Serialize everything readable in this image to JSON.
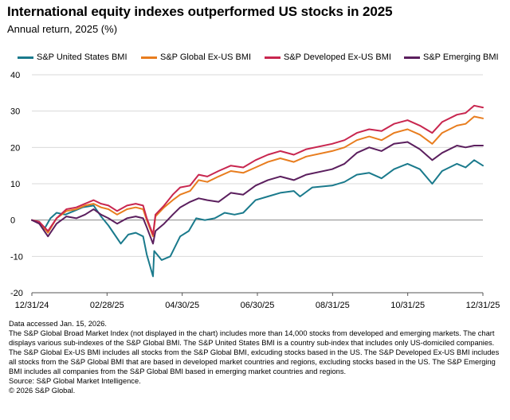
{
  "title": "International equity indexes outperformed US stocks in 2025",
  "subtitle": "Annual return, 2025 (%)",
  "notes": {
    "accessed": "Data accessed Jan. 15, 2026.",
    "description": "The S&P Global Broad Market Index (not displayed in the chart) includes more than 14,000 stocks from developed and emerging markets. The chart displays various sub-indexes of the S&P Global BMI. The S&P United States BMI is a country sub-index that includes only US-domiciled companies. The S&P Global Ex-US BMI includes all stocks from the S&P Global BMI, exlcuding stocks based in the US. The S&P Developed Ex-US BMI includes all stocks from the S&P Global BMI that are based in developed market countries and regions, excluding stocks based in the US. The S&P Emerging BMI includes all companies from the S&P Global BMI based in emerging market countries and regions.",
    "source": "Source: S&P Global Market Intelligence.",
    "copyright": "© 2026 S&P Global."
  },
  "chart_data": {
    "type": "line",
    "xlabel": "",
    "ylabel": "",
    "ylim": [
      -20,
      40
    ],
    "yticks": [
      -20,
      -10,
      0,
      10,
      20,
      30,
      40
    ],
    "xlim": [
      "2024-12-31",
      "2025-12-31"
    ],
    "xticks": [
      "12/31/24",
      "02/28/25",
      "04/30/25",
      "06/30/25",
      "08/31/25",
      "10/31/25",
      "12/31/25"
    ],
    "grid": "horizontal",
    "legend": "top",
    "series": [
      {
        "name": "S&P United States BMI",
        "color": "#1a7a8c",
        "points": [
          [
            "2024-12-31",
            0
          ],
          [
            "2025-01-06",
            -0.5
          ],
          [
            "2025-01-10",
            -2.5
          ],
          [
            "2025-01-15",
            0.5
          ],
          [
            "2025-01-20",
            2
          ],
          [
            "2025-01-27",
            1.5
          ],
          [
            "2025-02-03",
            2.5
          ],
          [
            "2025-02-10",
            3.5
          ],
          [
            "2025-02-19",
            4
          ],
          [
            "2025-02-25",
            1
          ],
          [
            "2025-03-03",
            -1.5
          ],
          [
            "2025-03-10",
            -5
          ],
          [
            "2025-03-13",
            -6.5
          ],
          [
            "2025-03-19",
            -4
          ],
          [
            "2025-03-25",
            -3.5
          ],
          [
            "2025-03-31",
            -4.5
          ],
          [
            "2025-04-03",
            -9.5
          ],
          [
            "2025-04-08",
            -15.5
          ],
          [
            "2025-04-09",
            -8.5
          ],
          [
            "2025-04-15",
            -11
          ],
          [
            "2025-04-22",
            -10
          ],
          [
            "2025-04-30",
            -4.5
          ],
          [
            "2025-05-07",
            -3
          ],
          [
            "2025-05-13",
            0.5
          ],
          [
            "2025-05-20",
            0
          ],
          [
            "2025-05-28",
            0.5
          ],
          [
            "2025-06-05",
            2
          ],
          [
            "2025-06-13",
            1.5
          ],
          [
            "2025-06-20",
            2
          ],
          [
            "2025-06-30",
            5.5
          ],
          [
            "2025-07-10",
            6.5
          ],
          [
            "2025-07-20",
            7.5
          ],
          [
            "2025-07-31",
            8
          ],
          [
            "2025-08-05",
            6.5
          ],
          [
            "2025-08-15",
            9
          ],
          [
            "2025-08-31",
            9.5
          ],
          [
            "2025-09-10",
            10.5
          ],
          [
            "2025-09-20",
            12.5
          ],
          [
            "2025-09-30",
            13
          ],
          [
            "2025-10-10",
            11.5
          ],
          [
            "2025-10-20",
            14
          ],
          [
            "2025-10-31",
            15.5
          ],
          [
            "2025-11-10",
            14
          ],
          [
            "2025-11-20",
            10
          ],
          [
            "2025-11-28",
            13.5
          ],
          [
            "2025-12-10",
            15.5
          ],
          [
            "2025-12-17",
            14.5
          ],
          [
            "2025-12-24",
            16.5
          ],
          [
            "2025-12-31",
            15
          ]
        ]
      },
      {
        "name": "S&P Global Ex-US BMI",
        "color": "#e87d1e",
        "points": [
          [
            "2024-12-31",
            0
          ],
          [
            "2025-01-06",
            -0.5
          ],
          [
            "2025-01-13",
            -3.5
          ],
          [
            "2025-01-20",
            0.5
          ],
          [
            "2025-01-28",
            2.5
          ],
          [
            "2025-02-05",
            3
          ],
          [
            "2025-02-12",
            4
          ],
          [
            "2025-02-19",
            4.5
          ],
          [
            "2025-02-25",
            3.5
          ],
          [
            "2025-03-03",
            3
          ],
          [
            "2025-03-10",
            1.5
          ],
          [
            "2025-03-18",
            3
          ],
          [
            "2025-03-25",
            3.5
          ],
          [
            "2025-03-31",
            3
          ],
          [
            "2025-04-03",
            0
          ],
          [
            "2025-04-08",
            -4.5
          ],
          [
            "2025-04-10",
            1
          ],
          [
            "2025-04-17",
            3.5
          ],
          [
            "2025-04-24",
            5.5
          ],
          [
            "2025-04-30",
            7
          ],
          [
            "2025-05-08",
            8
          ],
          [
            "2025-05-15",
            11
          ],
          [
            "2025-05-22",
            10.5
          ],
          [
            "2025-05-31",
            12
          ],
          [
            "2025-06-10",
            13.5
          ],
          [
            "2025-06-20",
            13
          ],
          [
            "2025-06-30",
            14.5
          ],
          [
            "2025-07-10",
            16
          ],
          [
            "2025-07-20",
            17
          ],
          [
            "2025-07-31",
            16
          ],
          [
            "2025-08-10",
            17.5
          ],
          [
            "2025-08-31",
            19
          ],
          [
            "2025-09-10",
            20
          ],
          [
            "2025-09-20",
            22
          ],
          [
            "2025-09-30",
            23
          ],
          [
            "2025-10-10",
            22
          ],
          [
            "2025-10-20",
            24
          ],
          [
            "2025-10-31",
            25
          ],
          [
            "2025-11-10",
            23.5
          ],
          [
            "2025-11-20",
            21
          ],
          [
            "2025-11-28",
            24
          ],
          [
            "2025-12-10",
            26
          ],
          [
            "2025-12-17",
            26.5
          ],
          [
            "2025-12-24",
            28.5
          ],
          [
            "2025-12-31",
            28
          ]
        ]
      },
      {
        "name": "S&P Developed Ex-US BMI",
        "color": "#c8264f",
        "points": [
          [
            "2024-12-31",
            0
          ],
          [
            "2025-01-06",
            -0.5
          ],
          [
            "2025-01-13",
            -3
          ],
          [
            "2025-01-20",
            0.5
          ],
          [
            "2025-01-28",
            3
          ],
          [
            "2025-02-05",
            3.5
          ],
          [
            "2025-02-12",
            4.5
          ],
          [
            "2025-02-19",
            5.5
          ],
          [
            "2025-02-25",
            4.5
          ],
          [
            "2025-03-03",
            4
          ],
          [
            "2025-03-10",
            2.5
          ],
          [
            "2025-03-18",
            4
          ],
          [
            "2025-03-25",
            4.5
          ],
          [
            "2025-03-31",
            4
          ],
          [
            "2025-04-03",
            0.5
          ],
          [
            "2025-04-08",
            -4
          ],
          [
            "2025-04-10",
            1.5
          ],
          [
            "2025-04-17",
            4
          ],
          [
            "2025-04-24",
            7
          ],
          [
            "2025-04-30",
            9
          ],
          [
            "2025-05-08",
            9.5
          ],
          [
            "2025-05-15",
            12.5
          ],
          [
            "2025-05-22",
            12
          ],
          [
            "2025-05-31",
            13.5
          ],
          [
            "2025-06-10",
            15
          ],
          [
            "2025-06-20",
            14.5
          ],
          [
            "2025-06-30",
            16.5
          ],
          [
            "2025-07-10",
            18
          ],
          [
            "2025-07-20",
            19
          ],
          [
            "2025-07-31",
            18
          ],
          [
            "2025-08-10",
            19.5
          ],
          [
            "2025-08-31",
            21
          ],
          [
            "2025-09-10",
            22
          ],
          [
            "2025-09-20",
            24
          ],
          [
            "2025-09-30",
            25
          ],
          [
            "2025-10-10",
            24.5
          ],
          [
            "2025-10-20",
            26.5
          ],
          [
            "2025-10-31",
            27.5
          ],
          [
            "2025-11-10",
            26
          ],
          [
            "2025-11-20",
            24
          ],
          [
            "2025-11-28",
            27
          ],
          [
            "2025-12-10",
            29
          ],
          [
            "2025-12-17",
            29.5
          ],
          [
            "2025-12-24",
            31.5
          ],
          [
            "2025-12-31",
            31
          ]
        ]
      },
      {
        "name": "S&P Emerging BMI",
        "color": "#5b1f5e",
        "points": [
          [
            "2024-12-31",
            0
          ],
          [
            "2025-01-06",
            -1
          ],
          [
            "2025-01-13",
            -4.5
          ],
          [
            "2025-01-20",
            -1
          ],
          [
            "2025-01-28",
            1
          ],
          [
            "2025-02-05",
            0.5
          ],
          [
            "2025-02-12",
            1.5
          ],
          [
            "2025-02-19",
            3
          ],
          [
            "2025-02-25",
            1.5
          ],
          [
            "2025-03-03",
            0.5
          ],
          [
            "2025-03-10",
            -1
          ],
          [
            "2025-03-18",
            0.5
          ],
          [
            "2025-03-25",
            1
          ],
          [
            "2025-03-31",
            0.5
          ],
          [
            "2025-04-03",
            -2
          ],
          [
            "2025-04-08",
            -6.5
          ],
          [
            "2025-04-10",
            -3
          ],
          [
            "2025-04-17",
            -1
          ],
          [
            "2025-04-24",
            1.5
          ],
          [
            "2025-04-30",
            3.5
          ],
          [
            "2025-05-08",
            5
          ],
          [
            "2025-05-15",
            6
          ],
          [
            "2025-05-22",
            5.5
          ],
          [
            "2025-05-31",
            5
          ],
          [
            "2025-06-10",
            7.5
          ],
          [
            "2025-06-20",
            7
          ],
          [
            "2025-06-30",
            9.5
          ],
          [
            "2025-07-10",
            11
          ],
          [
            "2025-07-20",
            12
          ],
          [
            "2025-07-31",
            11
          ],
          [
            "2025-08-10",
            12.5
          ],
          [
            "2025-08-31",
            14
          ],
          [
            "2025-09-10",
            15.5
          ],
          [
            "2025-09-20",
            18.5
          ],
          [
            "2025-09-30",
            20
          ],
          [
            "2025-10-10",
            19
          ],
          [
            "2025-10-20",
            21
          ],
          [
            "2025-10-31",
            21.5
          ],
          [
            "2025-11-10",
            19.5
          ],
          [
            "2025-11-20",
            16.5
          ],
          [
            "2025-11-28",
            18.5
          ],
          [
            "2025-12-10",
            20.5
          ],
          [
            "2025-12-17",
            20
          ],
          [
            "2025-12-24",
            20.5
          ],
          [
            "2025-12-31",
            20.5
          ]
        ]
      }
    ]
  }
}
